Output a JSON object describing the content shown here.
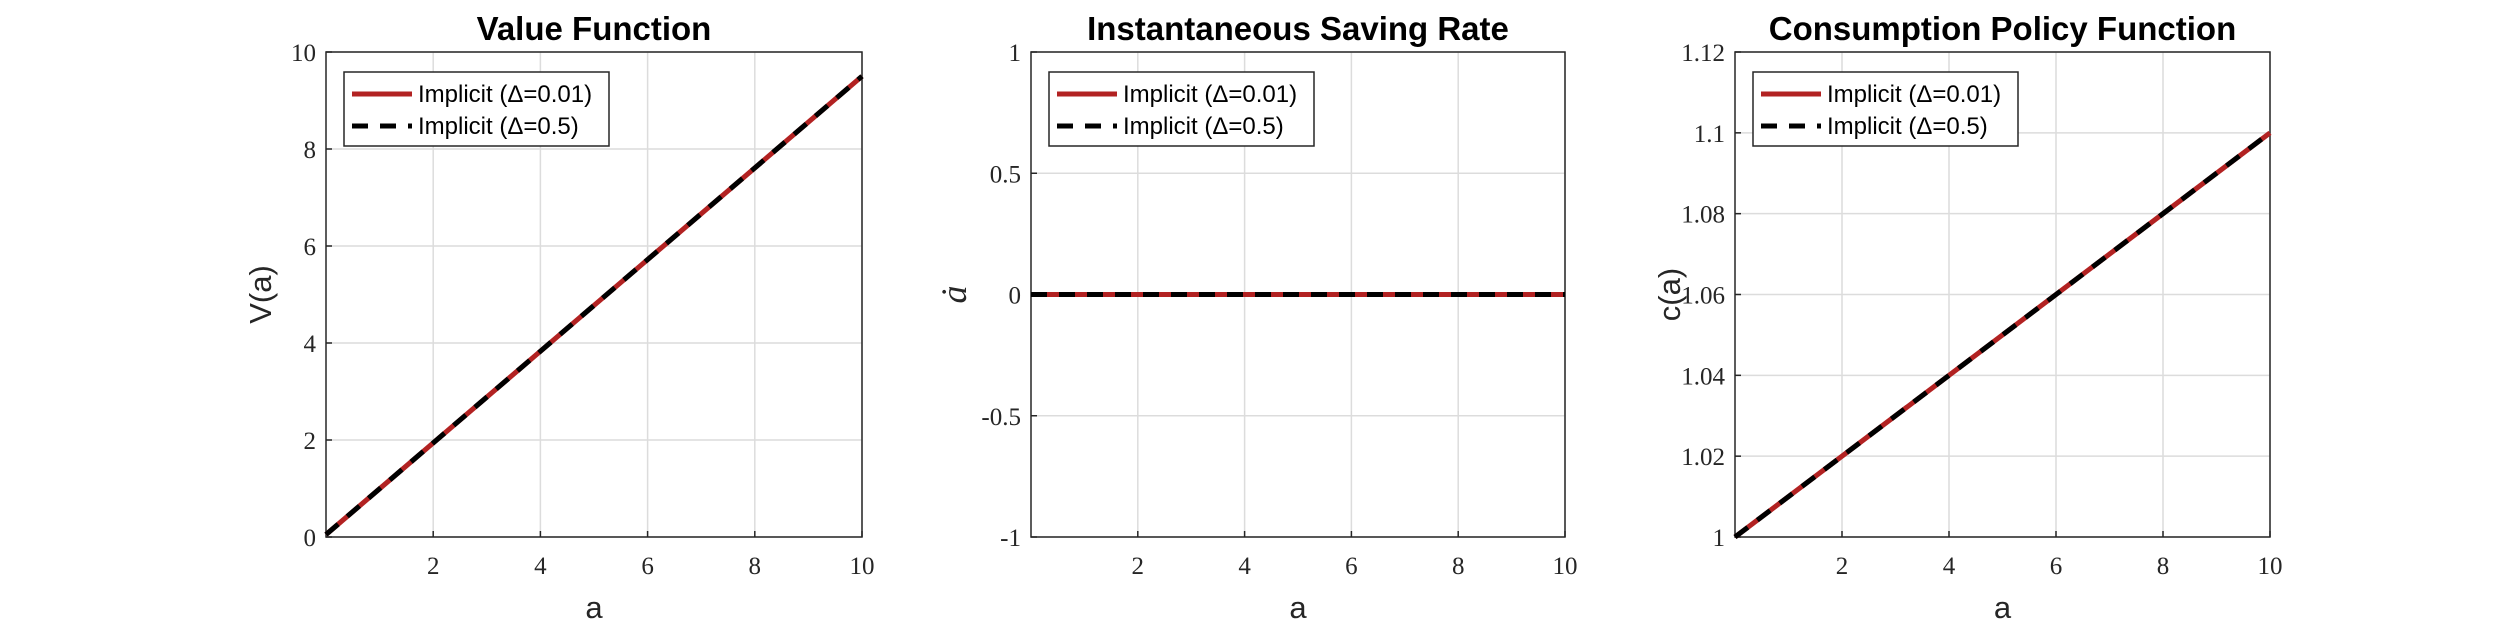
{
  "chart_data": [
    {
      "type": "line",
      "title": "Value Function",
      "xlabel": "a",
      "ylabel": "V(a)",
      "xlim": [
        0,
        10
      ],
      "ylim": [
        0,
        10
      ],
      "xticks": [
        2,
        4,
        6,
        8,
        10
      ],
      "xtick_labels": [
        "2",
        "4",
        "6",
        "8",
        "10"
      ],
      "yticks": [
        0,
        2,
        4,
        6,
        8,
        10
      ],
      "ytick_labels": [
        "0",
        "2",
        "4",
        "6",
        "8",
        "10"
      ],
      "grid": true,
      "legend": "top-left",
      "series": [
        {
          "name": "Implicit (Δ=0.01)",
          "color": "#B22222",
          "style": "solid",
          "x": [
            0,
            10
          ],
          "y": [
            0.05,
            9.5
          ]
        },
        {
          "name": "Implicit (Δ=0.5)",
          "color": "#000000",
          "style": "dashed",
          "x": [
            0,
            10
          ],
          "y": [
            0.05,
            9.5
          ]
        }
      ]
    },
    {
      "type": "line",
      "title": "Instantaneous Saving Rate",
      "xlabel": "a",
      "ylabel": "ȧ",
      "xlim": [
        0,
        10
      ],
      "ylim": [
        -1,
        1
      ],
      "xticks": [
        2,
        4,
        6,
        8,
        10
      ],
      "xtick_labels": [
        "2",
        "4",
        "6",
        "8",
        "10"
      ],
      "yticks": [
        -1,
        -0.5,
        0,
        0.5,
        1
      ],
      "ytick_labels": [
        "-1",
        "-0.5",
        "0",
        "0.5",
        "1"
      ],
      "grid": true,
      "legend": "top-left",
      "series": [
        {
          "name": "Implicit (Δ=0.01)",
          "color": "#B22222",
          "style": "solid",
          "x": [
            0,
            10
          ],
          "y": [
            0,
            0
          ]
        },
        {
          "name": "Implicit (Δ=0.5)",
          "color": "#000000",
          "style": "dashed",
          "x": [
            0,
            10
          ],
          "y": [
            0,
            0
          ]
        }
      ]
    },
    {
      "type": "line",
      "title": "Consumption Policy Function",
      "xlabel": "a",
      "ylabel": "c(a)",
      "xlim": [
        0,
        10
      ],
      "ylim": [
        1,
        1.12
      ],
      "xticks": [
        2,
        4,
        6,
        8,
        10
      ],
      "xtick_labels": [
        "2",
        "4",
        "6",
        "8",
        "10"
      ],
      "yticks": [
        1,
        1.02,
        1.04,
        1.06,
        1.08,
        1.1,
        1.12
      ],
      "ytick_labels": [
        "1",
        "1.02",
        "1.04",
        "1.06",
        "1.08",
        "1.1",
        "1.12"
      ],
      "grid": true,
      "legend": "top-left",
      "series": [
        {
          "name": "Implicit (Δ=0.01)",
          "color": "#B22222",
          "style": "solid",
          "x": [
            0,
            10
          ],
          "y": [
            1.0,
            1.1
          ]
        },
        {
          "name": "Implicit (Δ=0.5)",
          "color": "#000000",
          "style": "dashed",
          "x": [
            0,
            10
          ],
          "y": [
            1.0,
            1.1
          ]
        }
      ]
    }
  ]
}
